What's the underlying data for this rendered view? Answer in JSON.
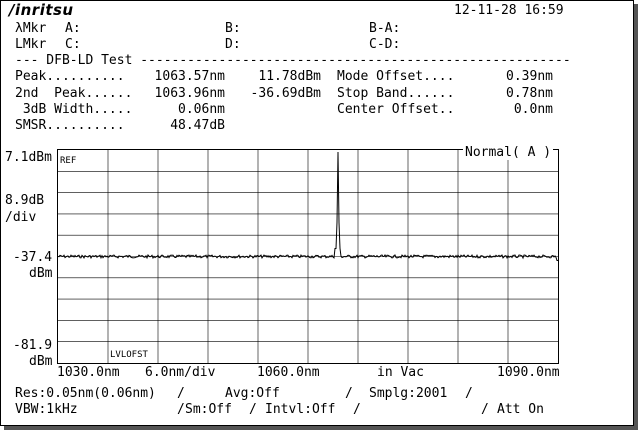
{
  "header": {
    "brand": "/inritsu",
    "datetime": "12-11-28 16:59"
  },
  "markers": {
    "wl_label": "λMkr",
    "a": "A:",
    "b": "B:",
    "ba": "B-A:",
    "lv_label": "LMkr",
    "c": "C:",
    "d": "D:",
    "cd": "C-D:"
  },
  "test": {
    "title": "--- DFB-LD Test -------------------------------------------------------",
    "peak_label": "Peak..........",
    "peak_wl": "1063.57nm",
    "peak_lvl": "11.78dBm",
    "peak2_label": "2nd  Peak......",
    "peak2_wl": "1063.96nm",
    "peak2_lvl": "-36.69dBm",
    "width_label": " 3dB Width.....",
    "width_val": "0.06nm",
    "smsr_label": "SMSR..........",
    "smsr_val": "48.47dB",
    "mode_offset_label": "Mode Offset....",
    "mode_offset_val": "0.39nm",
    "stop_band_label": "Stop Band......",
    "stop_band_val": "0.78nm",
    "center_offset_label": "Center Offset..",
    "center_offset_val": "0.0nm"
  },
  "plot": {
    "y_top": "7.1dBm",
    "ref_label": "REF",
    "scale_val": "8.9dB",
    "scale_unit": "/div",
    "y_mid": "-37.4",
    "y_mid_unit": "dBm",
    "y_bot": "-81.9",
    "y_bot_unit": "dBm",
    "lvl_offset": "LVLOFST",
    "mode": "Normal( A )",
    "x_start": "1030.0nm",
    "x_div": "6.0nm/div",
    "x_center": "1060.0nm",
    "medium": "in Vac",
    "x_stop": "1090.0nm"
  },
  "chart_data": {
    "type": "line",
    "xlim": [
      1030.0,
      1090.0
    ],
    "ylim": [
      -81.9,
      7.1
    ],
    "grid": true,
    "peak": {
      "x": 1063.57,
      "y": 11.78
    },
    "noise_floor": -37.4
  },
  "footer": {
    "res": "Res:0.05nm(0.06nm)",
    "sep1": "/",
    "avg": "Avg:Off",
    "sep2": "/",
    "smplg": "Smplg:2001",
    "sep3": "/",
    "vbw": "VBW:1kHz",
    "sep4": "/",
    "sm": "Sm:Off",
    "sep5": "/",
    "intvl": "Intvl:Off",
    "sep6": "/",
    "sep7": "/",
    "att": "Att On"
  }
}
